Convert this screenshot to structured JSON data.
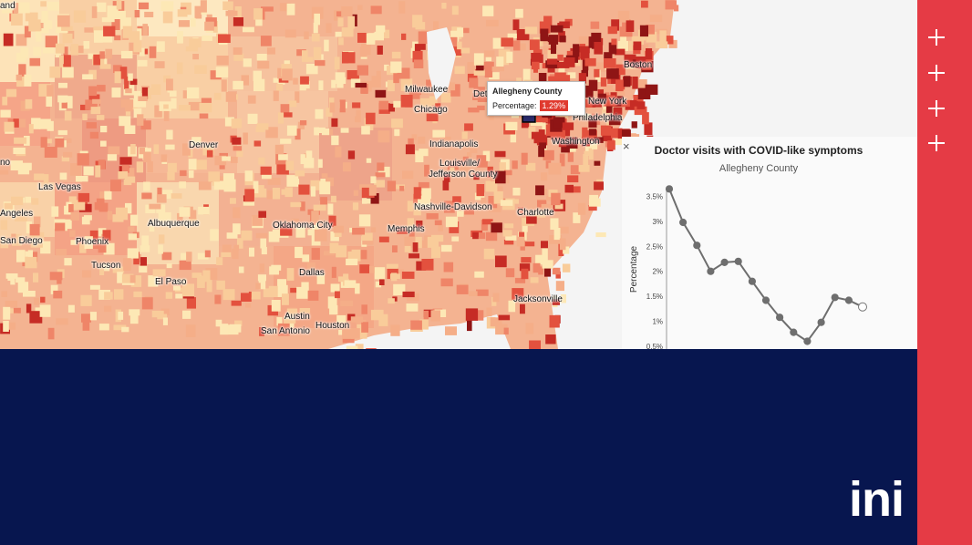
{
  "map": {
    "cities": [
      {
        "id": "land",
        "label": "and"
      },
      {
        "id": "milwaukee",
        "label": "Milwaukee"
      },
      {
        "id": "detroit",
        "label": "Det"
      },
      {
        "id": "boston",
        "label": "Boston"
      },
      {
        "id": "newyork",
        "label": "New York"
      },
      {
        "id": "philadelphia",
        "label": "Philadelphia"
      },
      {
        "id": "chicago",
        "label": "Chicago"
      },
      {
        "id": "washington",
        "label": "Washington"
      },
      {
        "id": "denver",
        "label": "Denver"
      },
      {
        "id": "indianapolis",
        "label": "Indianapolis"
      },
      {
        "id": "louisville1",
        "label": "Louisville/"
      },
      {
        "id": "louisville2",
        "label": "Jefferson County"
      },
      {
        "id": "reno",
        "label": "no"
      },
      {
        "id": "lasvegas",
        "label": "Las Vegas"
      },
      {
        "id": "nashville",
        "label": "Nashville-Davidson"
      },
      {
        "id": "charlotte",
        "label": "Charlotte"
      },
      {
        "id": "angeles",
        "label": "Angeles"
      },
      {
        "id": "albuquerque",
        "label": "Albuquerque"
      },
      {
        "id": "oklahoma",
        "label": "Oklahoma City"
      },
      {
        "id": "memphis",
        "label": "Memphis"
      },
      {
        "id": "sandiego",
        "label": "San Diego"
      },
      {
        "id": "phoenix",
        "label": "Phoenix"
      },
      {
        "id": "tucson",
        "label": "Tucson"
      },
      {
        "id": "dallas",
        "label": "Dallas"
      },
      {
        "id": "elpaso",
        "label": "El Paso"
      },
      {
        "id": "jacksonville",
        "label": "Jacksonville"
      },
      {
        "id": "austin",
        "label": "Austin"
      },
      {
        "id": "houston",
        "label": "Houston"
      },
      {
        "id": "sanantonio",
        "label": "San Antonio"
      }
    ],
    "tooltip": {
      "title": "Allegheny County",
      "label": "Percentage:",
      "value": "1.29%"
    }
  },
  "panel": {
    "close": "×",
    "title": "Doctor visits with COVID-like symptoms",
    "subtitle": "Allegheny County",
    "close_icon": "close-icon"
  },
  "chart_data": {
    "type": "line",
    "title": "Doctor visits with COVID-like symptoms",
    "subtitle": "Allegheny County",
    "xlabel": "",
    "ylabel": "Percentage",
    "yticks": [
      "0.5%",
      "1%",
      "1.5%",
      "2%",
      "2.5%",
      "3%",
      "3.5%"
    ],
    "ylim": [
      0.5,
      3.6
    ],
    "x": [
      1,
      2,
      3,
      4,
      5,
      6,
      7,
      8,
      9,
      10,
      11,
      12,
      13,
      14,
      15
    ],
    "values": [
      3.65,
      2.98,
      2.52,
      2.0,
      2.18,
      2.2,
      1.8,
      1.42,
      1.08,
      0.78,
      0.6,
      0.98,
      1.48,
      1.42,
      1.29
    ],
    "line_color": "#6e6e6e",
    "last_marker": "hollow"
  },
  "sidebar": {
    "buttons": [
      {
        "icon": "plus-icon"
      },
      {
        "icon": "plus-icon"
      },
      {
        "icon": "plus-icon"
      },
      {
        "icon": "plus-icon"
      }
    ]
  },
  "branding": {
    "logo_text": "ini",
    "accent": "#e53b45",
    "navy": "#07164f"
  }
}
